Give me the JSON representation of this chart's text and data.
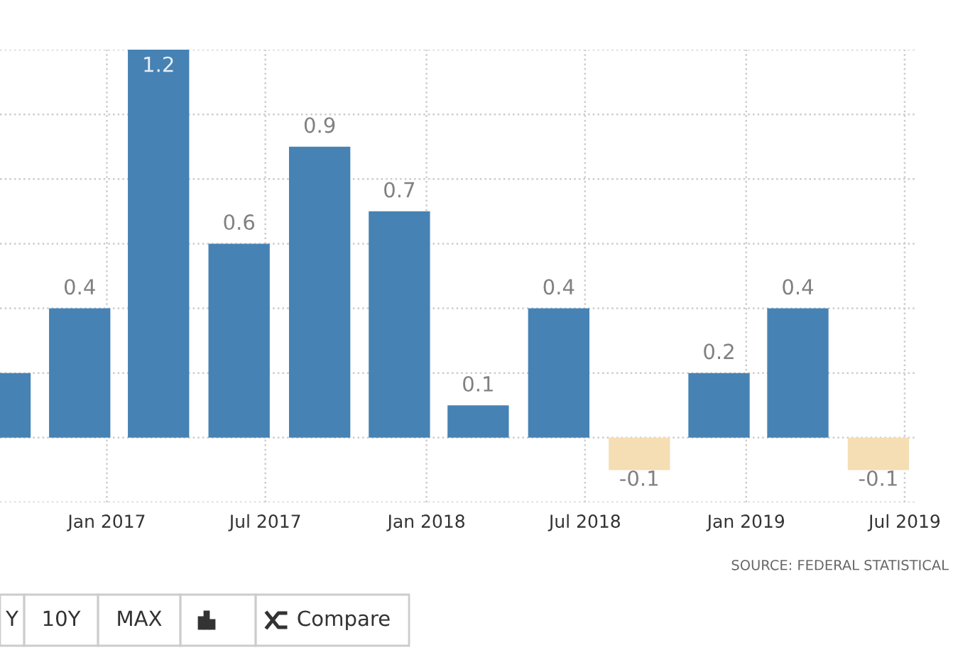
{
  "chart_data": {
    "type": "bar",
    "x": [
      "2016-09",
      "2016-12",
      "2017-03",
      "2017-06",
      "2017-09",
      "2017-12",
      "2018-03",
      "2018-06",
      "2018-09",
      "2018-12",
      "2019-03",
      "2019-06"
    ],
    "values": [
      0.2,
      0.4,
      1.2,
      0.6,
      0.9,
      0.7,
      0.1,
      0.4,
      -0.1,
      0.2,
      0.4,
      -0.1
    ],
    "colors": [
      "#4682b4",
      "#4682b4",
      "#4682b4",
      "#4682b4",
      "#4682b4",
      "#4682b4",
      "#4682b4",
      "#4682b4",
      "#f5deb3",
      "#4682b4",
      "#4682b4",
      "#f5deb3"
    ],
    "value_labels": [
      null,
      "0.4",
      "1.2",
      "0.6",
      "0.9",
      "0.7",
      "0.1",
      "0.4",
      "-0.1",
      "0.2",
      "0.4",
      "-0.1"
    ],
    "xlim": [
      "2016-09-01",
      "2019-07-14"
    ],
    "xticks": [
      {
        "value": "2017-01-01",
        "label": "Jan 2017"
      },
      {
        "value": "2017-07-01",
        "label": "Jul 2017"
      },
      {
        "value": "2018-01-01",
        "label": "Jan 2018"
      },
      {
        "value": "2018-07-01",
        "label": "Jul 2018"
      },
      {
        "value": "2019-01-01",
        "label": "Jan 2019"
      },
      {
        "value": "2019-07-01",
        "label": "Jul 2019"
      }
    ],
    "ylim": [
      -0.2,
      1.2
    ],
    "yticks": [
      {
        "value": -0.2,
        "label": null
      },
      {
        "value": 0,
        "label": null
      },
      {
        "value": 0.2,
        "label": null
      },
      {
        "value": 0.4,
        "label": null
      },
      {
        "value": 0.6,
        "label": null
      },
      {
        "value": 0.8,
        "label": null
      },
      {
        "value": 1.0,
        "label": null
      },
      {
        "value": 1.2,
        "label": null
      }
    ],
    "tick_labels": "x",
    "grid": true,
    "annotations": [
      "SOURCE: FEDERAL STATISTICAL",
      "Y",
      "10Y",
      "MAX",
      "Compare"
    ]
  }
}
